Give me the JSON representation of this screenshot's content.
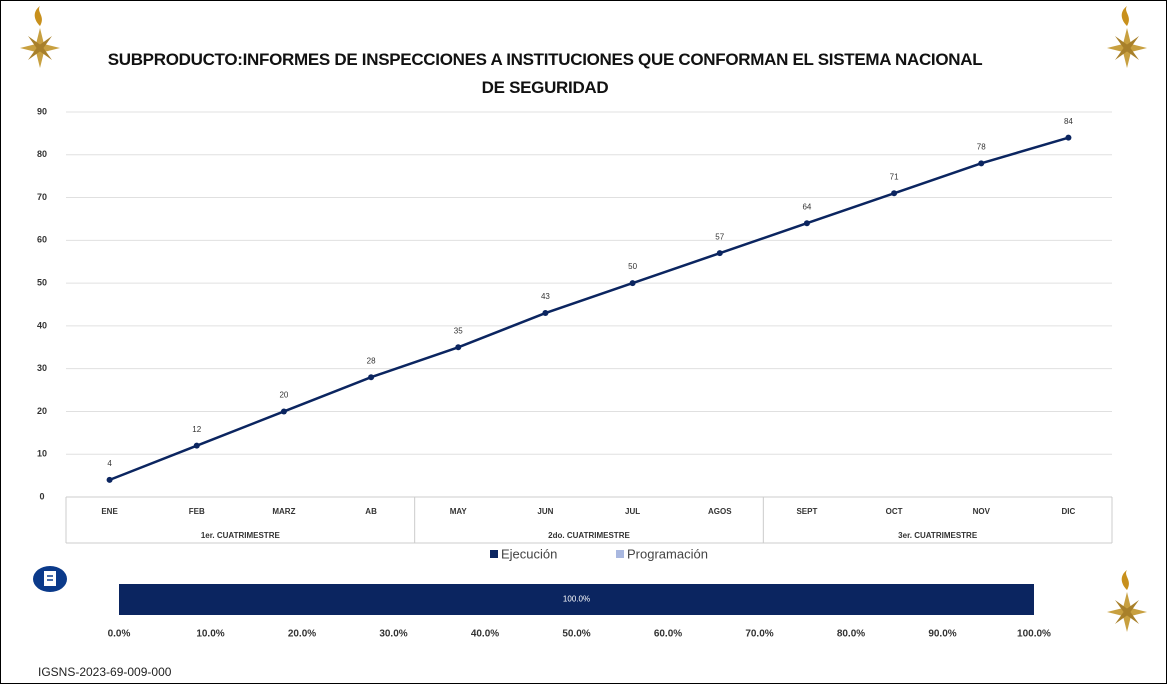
{
  "chart_data": [
    {
      "type": "line",
      "title": "SUBPRODUCTO:INFORMES DE INSPECCIONES A INSTITUCIONES QUE CONFORMAN EL SISTEMA NACIONAL DE SEGURIDAD",
      "categories": [
        "ENE",
        "FEB",
        "MARZ",
        "AB",
        "MAY",
        "JUN",
        "JUL",
        "AGOS",
        "SEPT",
        "OCT",
        "NOV",
        "DIC"
      ],
      "groups": [
        "1er. CUATRIMESTRE",
        "2do. CUATRIMESTRE",
        "3er. CUATRIMESTRE"
      ],
      "series": [
        {
          "name": "Ejecución",
          "color": "#0b2560",
          "values": [
            4,
            12,
            20,
            28,
            35,
            43,
            50,
            57,
            64,
            71,
            78,
            84
          ]
        },
        {
          "name": "Programación",
          "color": "#a9b8e0",
          "values": [
            null,
            null,
            null,
            null,
            null,
            null,
            null,
            null,
            null,
            null,
            null,
            null
          ]
        }
      ],
      "ylim": [
        0,
        90
      ],
      "yticks": [
        0,
        10,
        20,
        30,
        40,
        50,
        60,
        70,
        80,
        90
      ],
      "grid": true
    },
    {
      "type": "bar",
      "orientation": "horizontal",
      "categories": [
        null
      ],
      "values": [
        100
      ],
      "value_labels": [
        "100.0%"
      ],
      "color": "#0b2560",
      "xlim": [
        0,
        100
      ],
      "xticks": [
        {
          "value": 0,
          "label": "0.0%"
        },
        {
          "value": 10,
          "label": "10.0%"
        },
        {
          "value": 20,
          "label": "20.0%"
        },
        {
          "value": 30,
          "label": "30.0%"
        },
        {
          "value": 40,
          "label": "40.0%"
        },
        {
          "value": 50,
          "label": "50.0%"
        },
        {
          "value": 60,
          "label": "60.0%"
        },
        {
          "value": 70,
          "label": "70.0%"
        },
        {
          "value": 80,
          "label": "80.0%"
        },
        {
          "value": 90,
          "label": "90.0%"
        },
        {
          "value": 100,
          "label": "100.0%"
        }
      ]
    }
  ],
  "footer": "IGSNS-2023-69-009-000"
}
